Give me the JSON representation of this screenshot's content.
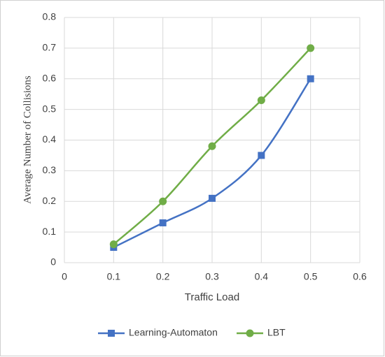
{
  "chart_data": {
    "type": "line",
    "x": [
      0.1,
      0.2,
      0.3,
      0.4,
      0.5
    ],
    "series": [
      {
        "name": "Learning-Automaton",
        "color": "#4472c4",
        "marker": "square",
        "values": [
          0.05,
          0.13,
          0.21,
          0.35,
          0.6
        ]
      },
      {
        "name": "LBT",
        "color": "#70ad47",
        "marker": "circle",
        "values": [
          0.06,
          0.2,
          0.38,
          0.53,
          0.7
        ]
      }
    ],
    "xlabel": "Traffic Load",
    "ylabel": "Average Number of Collisions",
    "xlim": [
      0,
      0.6
    ],
    "xticks": [
      0,
      0.1,
      0.2,
      0.3,
      0.4,
      0.5,
      0.6
    ],
    "ylim": [
      0,
      0.8
    ],
    "yticks": [
      0,
      0.1,
      0.2,
      0.3,
      0.4,
      0.5,
      0.6,
      0.7,
      0.8
    ],
    "grid": true,
    "smooth": true,
    "legend": "bottom"
  }
}
